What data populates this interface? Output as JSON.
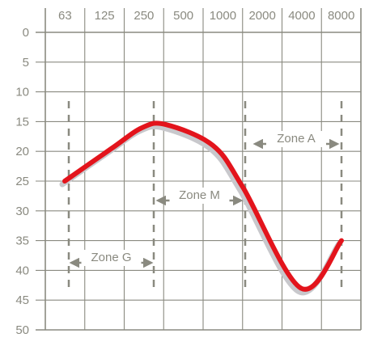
{
  "chart_data": {
    "type": "line",
    "x_categories": [
      "63",
      "125",
      "250",
      "500",
      "1000",
      "2000",
      "4000",
      "8000"
    ],
    "y_ticks": [
      0,
      5,
      10,
      15,
      20,
      25,
      30,
      35,
      40,
      45,
      50
    ],
    "ylim": [
      0,
      50
    ],
    "y_inverted": true,
    "grid": true,
    "series": [
      {
        "color": "#e3141c",
        "x": [
          "63",
          "125",
          "250",
          "500",
          "1000",
          "2000",
          "4000",
          "8000"
        ],
        "y": [
          25,
          19.5,
          16,
          15.5,
          19,
          26,
          43,
          35
        ]
      }
    ],
    "zones": [
      {
        "label": "Zone G",
        "from": "63",
        "to": "250"
      },
      {
        "label": "Zone M",
        "from": "250",
        "to": "2000"
      },
      {
        "label": "Zone A",
        "from": "2000",
        "to": "8000"
      }
    ],
    "colors": {
      "grid": "#8a8a80",
      "curve": "#e3141c",
      "shadow": "#c8c8cc",
      "zone": "#8a8a80"
    }
  }
}
